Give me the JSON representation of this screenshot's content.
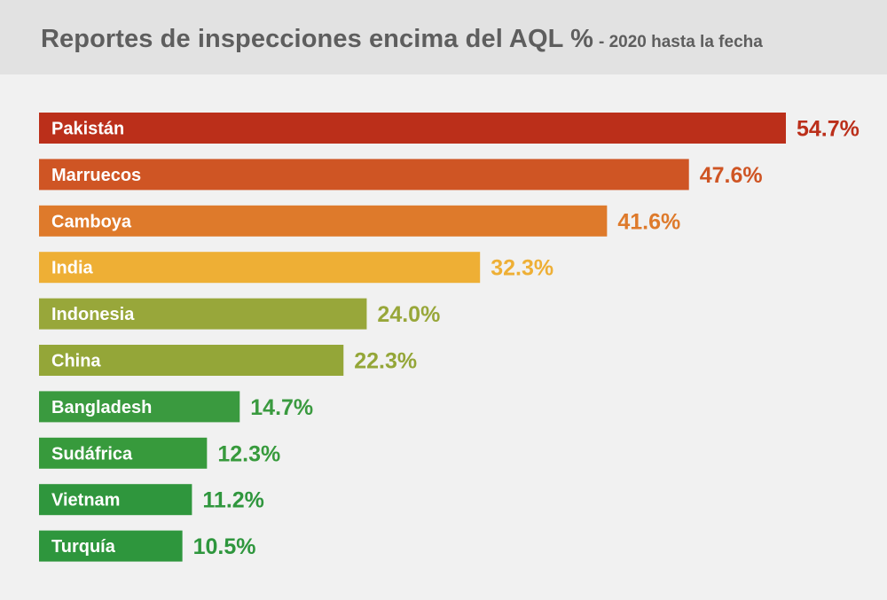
{
  "header": {
    "title": "Reportes de inspecciones encima del AQL %",
    "subtitle": "- 2020 hasta la fecha"
  },
  "chart_data": {
    "type": "bar",
    "orientation": "horizontal",
    "title": "Reportes de inspecciones encima del AQL %",
    "subtitle": "- 2020 hasta la fecha",
    "categories": [
      "Pakistán",
      "Marruecos",
      "Camboya",
      "India",
      "Indonesia",
      "China",
      "Bangladesh",
      "Sudáfrica",
      "Vietnam",
      "Turquía"
    ],
    "values": [
      54.7,
      47.6,
      41.6,
      32.3,
      24.0,
      22.3,
      14.7,
      12.3,
      11.2,
      10.5
    ],
    "value_labels": [
      "54.7%",
      "47.6%",
      "41.6%",
      "32.3%",
      "24.0%",
      "22.3%",
      "14.7%",
      "12.3%",
      "11.2%",
      "10.5%"
    ],
    "colors": [
      "#bb2f1a",
      "#cf5524",
      "#de7a2b",
      "#eeaf35",
      "#98a73a",
      "#94a638",
      "#3a9a3f",
      "#379a3c",
      "#2f963d",
      "#2e963d"
    ],
    "xlim": [
      0,
      54.7
    ],
    "grid": false,
    "legend": "none"
  }
}
